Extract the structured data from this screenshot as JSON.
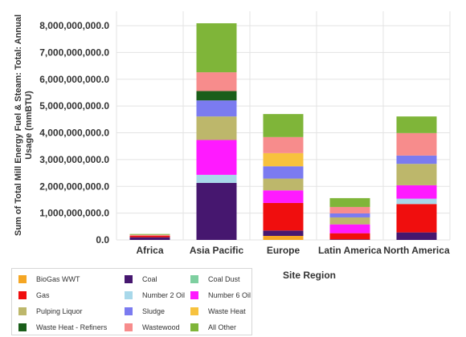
{
  "chart_data": {
    "type": "bar",
    "stacked": true,
    "ylabel": "Sum of Total Mill Energy Fuel & Steam: Total: Annual Usage (mmBTU)",
    "xlabel": "Site Region",
    "categories": [
      "Africa",
      "Asia Pacific",
      "Europe",
      "Latin America",
      "North America"
    ],
    "y_ticks": [
      "0.0",
      "1,000,000,000.0",
      "2,000,000,000.0",
      "3,000,000,000.0",
      "4,000,000,000.0",
      "5,000,000,000.0",
      "6,000,000,000.0",
      "7,000,000,000.0",
      "8,000,000,000.0"
    ],
    "ylim": [
      0,
      8400000000
    ],
    "grid": true,
    "legend_position": "bottom-left",
    "series": [
      {
        "name": "BioGas WWT",
        "color": "#f5a623",
        "values": [
          0,
          0,
          150000000,
          0,
          0
        ]
      },
      {
        "name": "Coal",
        "color": "#46176f",
        "values": [
          100000000,
          2130000000,
          200000000,
          20000000,
          280000000
        ]
      },
      {
        "name": "Coal Dust",
        "color": "#7ecfa0",
        "values": [
          0,
          0,
          0,
          0,
          0
        ]
      },
      {
        "name": "Gas",
        "color": "#f00e0e",
        "values": [
          50000000,
          0,
          1030000000,
          230000000,
          1060000000
        ]
      },
      {
        "name": "Number 2 Oil",
        "color": "#a8d8ea",
        "values": [
          0,
          300000000,
          0,
          0,
          200000000
        ]
      },
      {
        "name": "Number 6 Oil",
        "color": "#ff1aff",
        "values": [
          0,
          1300000000,
          470000000,
          330000000,
          500000000
        ]
      },
      {
        "name": "Pulping Liquor",
        "color": "#bdb76b",
        "values": [
          0,
          880000000,
          440000000,
          260000000,
          800000000
        ]
      },
      {
        "name": "Sludge",
        "color": "#7b7bf0",
        "values": [
          0,
          600000000,
          460000000,
          150000000,
          310000000
        ]
      },
      {
        "name": "Waste Heat",
        "color": "#f7c23e",
        "values": [
          0,
          0,
          490000000,
          0,
          0
        ]
      },
      {
        "name": "Waste Heat - Refiners",
        "color": "#1a5e1a",
        "values": [
          0,
          350000000,
          0,
          0,
          0
        ]
      },
      {
        "name": "Wastewood",
        "color": "#f78c8c",
        "values": [
          40000000,
          700000000,
          600000000,
          240000000,
          840000000
        ]
      },
      {
        "name": "All Other",
        "color": "#7fb539",
        "values": [
          30000000,
          1830000000,
          860000000,
          330000000,
          620000000
        ]
      }
    ]
  }
}
